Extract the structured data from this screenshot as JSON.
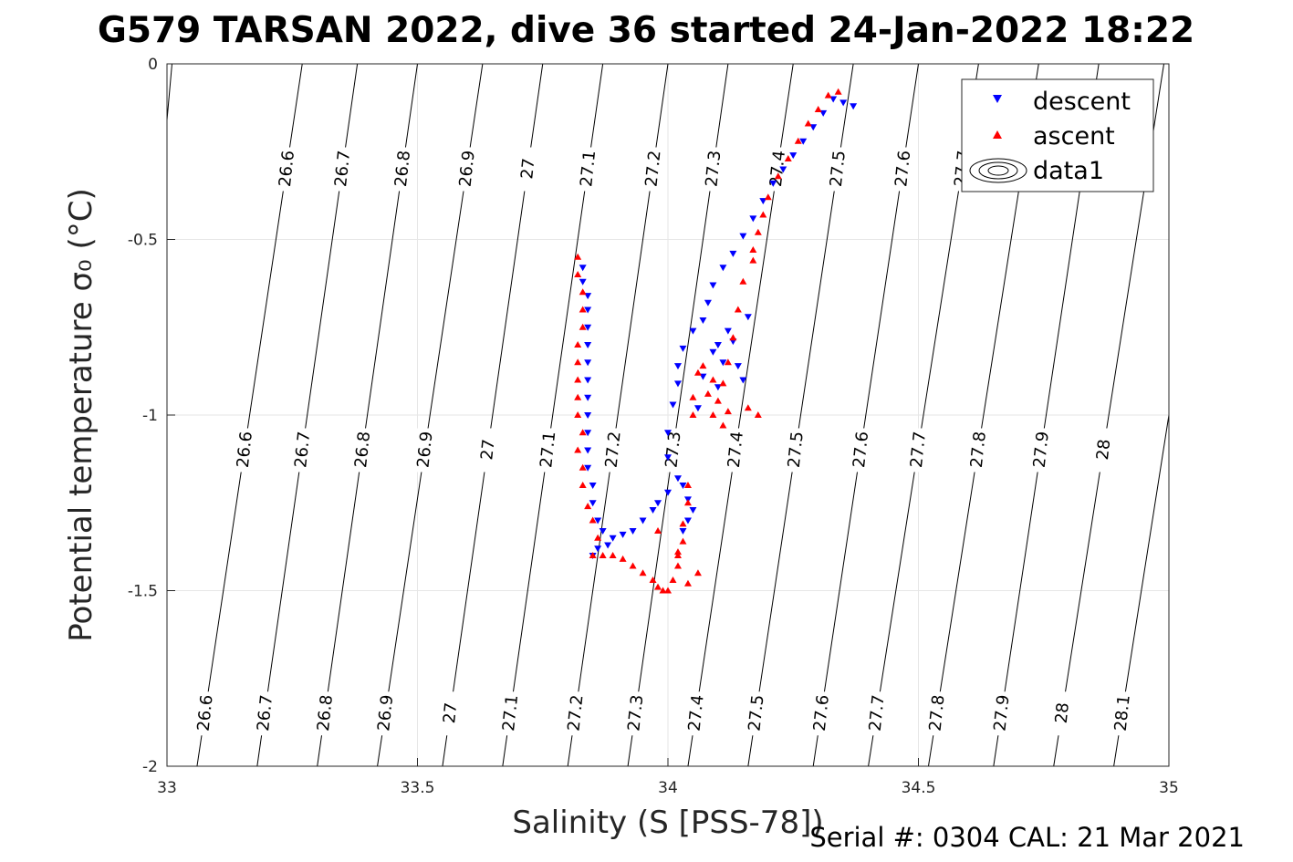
{
  "title": "G579 TARSAN 2022, dive 36 started 24-Jan-2022 18:22",
  "footer": "Serial #: 0304  CAL: 21 Mar 2021",
  "chart_data": {
    "type": "scatter",
    "xlabel": "Salinity (S [PSS-78])",
    "ylabel": "Potential temperature σ₀ (°C)",
    "xlim": [
      33,
      35
    ],
    "ylim": [
      -2,
      0
    ],
    "xticks": [
      33,
      33.5,
      34,
      34.5,
      35
    ],
    "xtick_labels": [
      "33",
      "33.5",
      "34",
      "34.5",
      "35"
    ],
    "yticks": [
      0,
      -0.5,
      -1,
      -1.5,
      -2
    ],
    "ytick_labels": [
      "0",
      "-0.5",
      "-1",
      "-1.5",
      "-2"
    ],
    "grid": true,
    "legend": {
      "placement": "top-right",
      "entries": [
        "descent",
        "ascent",
        "data1"
      ]
    },
    "colors": {
      "descent": "#0000ff",
      "ascent": "#ff0000",
      "contour": "#000000",
      "grid": "#e6e6e6"
    },
    "series": [
      {
        "name": "descent",
        "marker": "triangle-down",
        "points": [
          [
            34.37,
            -0.12
          ],
          [
            34.35,
            -0.11
          ],
          [
            34.33,
            -0.1
          ],
          [
            34.31,
            -0.14
          ],
          [
            34.29,
            -0.18
          ],
          [
            34.27,
            -0.22
          ],
          [
            34.25,
            -0.26
          ],
          [
            34.23,
            -0.3
          ],
          [
            34.21,
            -0.34
          ],
          [
            34.19,
            -0.39
          ],
          [
            34.17,
            -0.44
          ],
          [
            34.15,
            -0.49
          ],
          [
            34.13,
            -0.54
          ],
          [
            34.11,
            -0.58
          ],
          [
            34.09,
            -0.63
          ],
          [
            34.08,
            -0.68
          ],
          [
            34.07,
            -0.73
          ],
          [
            34.05,
            -0.76
          ],
          [
            34.03,
            -0.81
          ],
          [
            34.02,
            -0.86
          ],
          [
            34.02,
            -0.91
          ],
          [
            34.01,
            -0.97
          ],
          [
            34.0,
            -1.05
          ],
          [
            34.0,
            -1.12
          ],
          [
            34.02,
            -1.18
          ],
          [
            34.0,
            -1.22
          ],
          [
            33.98,
            -1.25
          ],
          [
            33.97,
            -1.27
          ],
          [
            33.95,
            -1.3
          ],
          [
            33.93,
            -1.33
          ],
          [
            33.91,
            -1.34
          ],
          [
            33.89,
            -1.35
          ],
          [
            33.88,
            -1.37
          ],
          [
            33.86,
            -1.38
          ],
          [
            33.85,
            -1.4
          ],
          [
            33.87,
            -1.33
          ],
          [
            33.86,
            -1.3
          ],
          [
            33.85,
            -1.25
          ],
          [
            33.85,
            -1.2
          ],
          [
            33.84,
            -1.15
          ],
          [
            33.84,
            -1.1
          ],
          [
            33.84,
            -1.05
          ],
          [
            33.84,
            -1.0
          ],
          [
            33.84,
            -0.95
          ],
          [
            33.84,
            -0.9
          ],
          [
            33.84,
            -0.85
          ],
          [
            33.84,
            -0.8
          ],
          [
            33.84,
            -0.75
          ],
          [
            33.84,
            -0.7
          ],
          [
            33.84,
            -0.66
          ],
          [
            33.83,
            -0.62
          ],
          [
            33.83,
            -0.58
          ],
          [
            34.1,
            -0.8
          ],
          [
            34.11,
            -0.85
          ],
          [
            34.09,
            -0.82
          ],
          [
            34.12,
            -0.76
          ],
          [
            34.13,
            -0.79
          ],
          [
            34.07,
            -0.89
          ],
          [
            34.16,
            -0.72
          ],
          [
            34.06,
            -0.98
          ],
          [
            34.04,
            -1.3
          ],
          [
            34.03,
            -1.33
          ],
          [
            34.05,
            -1.27
          ],
          [
            34.04,
            -1.24
          ],
          [
            34.03,
            -1.2
          ],
          [
            34.1,
            -0.92
          ],
          [
            34.15,
            -0.9
          ],
          [
            34.14,
            -0.86
          ]
        ]
      },
      {
        "name": "ascent",
        "marker": "triangle-up",
        "points": [
          [
            34.34,
            -0.08
          ],
          [
            34.32,
            -0.09
          ],
          [
            34.3,
            -0.13
          ],
          [
            34.28,
            -0.17
          ],
          [
            34.26,
            -0.22
          ],
          [
            34.24,
            -0.27
          ],
          [
            34.22,
            -0.32
          ],
          [
            34.2,
            -0.38
          ],
          [
            34.19,
            -0.43
          ],
          [
            34.18,
            -0.48
          ],
          [
            34.17,
            -0.53
          ],
          [
            34.17,
            -0.56
          ],
          [
            34.15,
            -0.62
          ],
          [
            34.14,
            -0.7
          ],
          [
            34.13,
            -0.78
          ],
          [
            34.12,
            -0.85
          ],
          [
            34.11,
            -0.91
          ],
          [
            34.1,
            -0.96
          ],
          [
            34.09,
            -0.9
          ],
          [
            34.08,
            -0.94
          ],
          [
            34.12,
            -0.99
          ],
          [
            34.11,
            -1.03
          ],
          [
            34.09,
            -1.0
          ],
          [
            34.07,
            -0.86
          ],
          [
            34.06,
            -0.88
          ],
          [
            34.05,
            -0.95
          ],
          [
            34.05,
            -1.0
          ],
          [
            34.16,
            -0.98
          ],
          [
            34.18,
            -1.0
          ],
          [
            34.04,
            -1.2
          ],
          [
            34.04,
            -1.25
          ],
          [
            34.03,
            -1.31
          ],
          [
            34.03,
            -1.36
          ],
          [
            34.02,
            -1.39
          ],
          [
            34.02,
            -1.43
          ],
          [
            34.01,
            -1.47
          ],
          [
            34.0,
            -1.5
          ],
          [
            33.99,
            -1.5
          ],
          [
            33.98,
            -1.49
          ],
          [
            33.97,
            -1.47
          ],
          [
            33.95,
            -1.45
          ],
          [
            33.93,
            -1.43
          ],
          [
            33.91,
            -1.41
          ],
          [
            33.89,
            -1.4
          ],
          [
            33.87,
            -1.4
          ],
          [
            33.85,
            -1.4
          ],
          [
            33.86,
            -1.35
          ],
          [
            33.85,
            -1.3
          ],
          [
            33.84,
            -1.26
          ],
          [
            33.83,
            -1.2
          ],
          [
            33.83,
            -1.15
          ],
          [
            33.82,
            -1.1
          ],
          [
            33.83,
            -1.05
          ],
          [
            33.82,
            -1.0
          ],
          [
            33.82,
            -0.95
          ],
          [
            33.82,
            -0.9
          ],
          [
            33.82,
            -0.85
          ],
          [
            33.82,
            -0.8
          ],
          [
            33.83,
            -0.75
          ],
          [
            33.83,
            -0.7
          ],
          [
            33.83,
            -0.65
          ],
          [
            33.82,
            -0.6
          ],
          [
            33.82,
            -0.55
          ],
          [
            33.98,
            -1.33
          ],
          [
            34.06,
            -1.45
          ],
          [
            34.02,
            -1.4
          ],
          [
            34.04,
            -1.48
          ]
        ]
      }
    ],
    "contours": {
      "name": "data1",
      "levels": [
        26.6,
        26.7,
        26.8,
        26.9,
        27,
        27.1,
        27.2,
        27.3,
        27.4,
        27.5,
        27.6,
        27.7,
        27.8,
        27.9,
        28,
        28.1
      ],
      "level_labels": [
        "26.6",
        "26.7",
        "26.8",
        "26.9",
        "27",
        "27.1",
        "27.2",
        "27.3",
        "27.4",
        "27.5",
        "27.6",
        "27.7",
        "27.8",
        "27.9",
        "28",
        "28.1"
      ],
      "salinity_at_minus2C": [
        33.06,
        33.18,
        33.3,
        33.42,
        33.55,
        33.67,
        33.8,
        33.92,
        34.04,
        34.16,
        34.29,
        34.4,
        34.52,
        34.65,
        34.77,
        34.89
      ],
      "salinity_at_0C": [
        33.27,
        33.38,
        33.5,
        33.63,
        33.75,
        33.87,
        34.0,
        34.12,
        34.25,
        34.37,
        34.5,
        34.62,
        34.74,
        34.86,
        34.99,
        35.11
      ]
    }
  }
}
